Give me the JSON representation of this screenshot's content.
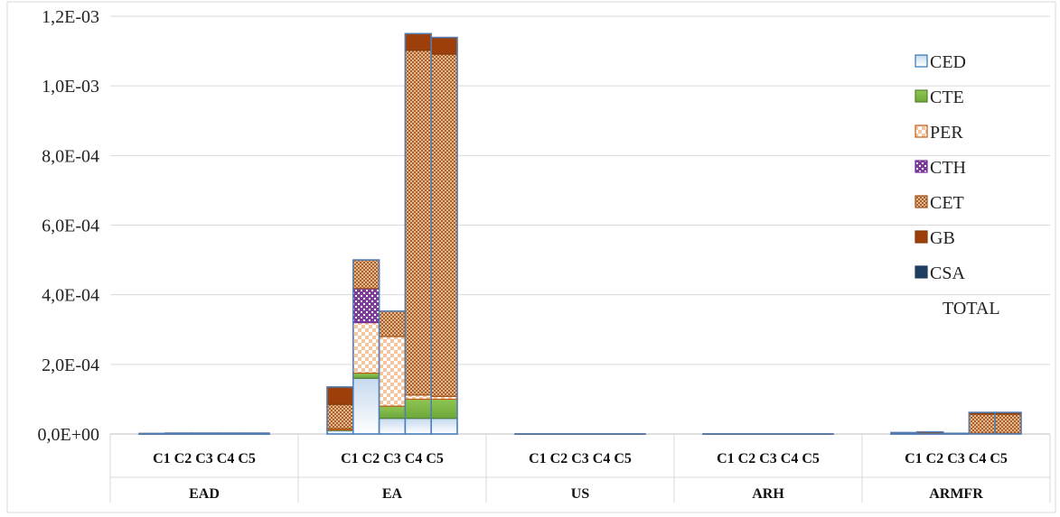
{
  "chart_data": {
    "type": "bar",
    "stacked": true,
    "title": "",
    "xlabel": "",
    "ylabel": "",
    "ylim": [
      0,
      0.0012
    ],
    "y_ticks": [
      "0,0E+00",
      "2,0E-04",
      "4,0E-04",
      "6,0E-04",
      "8,0E-04",
      "1,0E-03",
      "1,2E-03"
    ],
    "y_tick_values": [
      0,
      0.0002,
      0.0004,
      0.0006,
      0.0008,
      0.001,
      0.0012
    ],
    "groups": [
      "EAD",
      "EA",
      "US",
      "ARH",
      "ARMFR"
    ],
    "sub_categories": [
      "C1",
      "C2",
      "C3",
      "C4",
      "C5"
    ],
    "sub_category_label_text": "C1 C2 C3 C4 C5",
    "grid": "horizontal",
    "legend_position": "right",
    "legend": [
      "CED",
      "CTE",
      "PER",
      "CTH",
      "CET",
      "GB",
      "CSA",
      "TOTAL"
    ],
    "series": [
      {
        "name": "CED",
        "color": "#dde8f5",
        "values": [
          [
            5e-07,
            5e-07,
            5e-07,
            5e-07,
            5e-07
          ],
          [
            1e-05,
            0.00016,
            4.5e-05,
            4.5e-05,
            4.5e-05
          ],
          [
            0,
            0,
            0,
            0,
            0
          ],
          [
            0,
            0,
            0,
            0,
            0
          ],
          [
            1e-06,
            1e-06,
            1e-06,
            2e-06,
            2e-06
          ]
        ]
      },
      {
        "name": "CTE",
        "color": "#8fc553",
        "values": [
          [
            0,
            0,
            0,
            0,
            0
          ],
          [
            2e-06,
            1.5e-05,
            3.5e-05,
            5.5e-05,
            5.5e-05
          ],
          [
            0,
            0,
            0,
            0,
            0
          ],
          [
            0,
            0,
            0,
            0,
            0
          ],
          [
            0,
            0,
            0,
            0,
            0
          ]
        ]
      },
      {
        "name": "PER",
        "color": "#f4c6a0",
        "values": [
          [
            0,
            0,
            0,
            0,
            0
          ],
          [
            3e-06,
            0.000145,
            0.0002,
            1.2e-05,
            8e-06
          ],
          [
            0,
            0,
            0,
            0,
            0
          ],
          [
            0,
            0,
            0,
            0,
            0
          ],
          [
            0,
            0,
            0,
            0,
            0
          ]
        ]
      },
      {
        "name": "CTH",
        "color": "#7d3c98",
        "values": [
          [
            0,
            0,
            0,
            0,
            0
          ],
          [
            0,
            9.8e-05,
            0,
            0,
            0
          ],
          [
            0,
            0,
            0,
            0,
            0
          ],
          [
            0,
            0,
            0,
            0,
            0
          ],
          [
            0,
            0,
            0,
            0,
            0
          ]
        ]
      },
      {
        "name": "CET",
        "color": "#e8b98e",
        "values": [
          [
            1e-06,
            2e-06,
            2e-06,
            2e-06,
            2e-06
          ],
          [
            7e-05,
            8.2e-05,
            7.3e-05,
            0.00099,
            0.000983
          ],
          [
            5e-07,
            5e-07,
            5e-07,
            5e-07,
            5e-07
          ],
          [
            5e-07,
            5e-07,
            5e-07,
            5e-07,
            5e-07
          ],
          [
            2e-06,
            4e-06,
            1e-06,
            5.5e-05,
            5.5e-05
          ]
        ]
      },
      {
        "name": "GB",
        "color": "#9c3f0a",
        "values": [
          [
            0,
            0,
            0,
            0,
            0
          ],
          [
            5e-05,
            0,
            0,
            4.8e-05,
            4.8e-05
          ],
          [
            0,
            0,
            0,
            0,
            0
          ],
          [
            0,
            0,
            0,
            0,
            0
          ],
          [
            1e-06,
            1e-06,
            0,
            5e-06,
            5e-06
          ]
        ]
      },
      {
        "name": "CSA",
        "color": "#1f3e5f",
        "values": [
          [
            0,
            0,
            0,
            0,
            0
          ],
          [
            0,
            0,
            0,
            0,
            0
          ],
          [
            0,
            0,
            0,
            0,
            0
          ],
          [
            0,
            0,
            0,
            0,
            0
          ],
          [
            0,
            0,
            0,
            0,
            0
          ]
        ]
      }
    ]
  }
}
